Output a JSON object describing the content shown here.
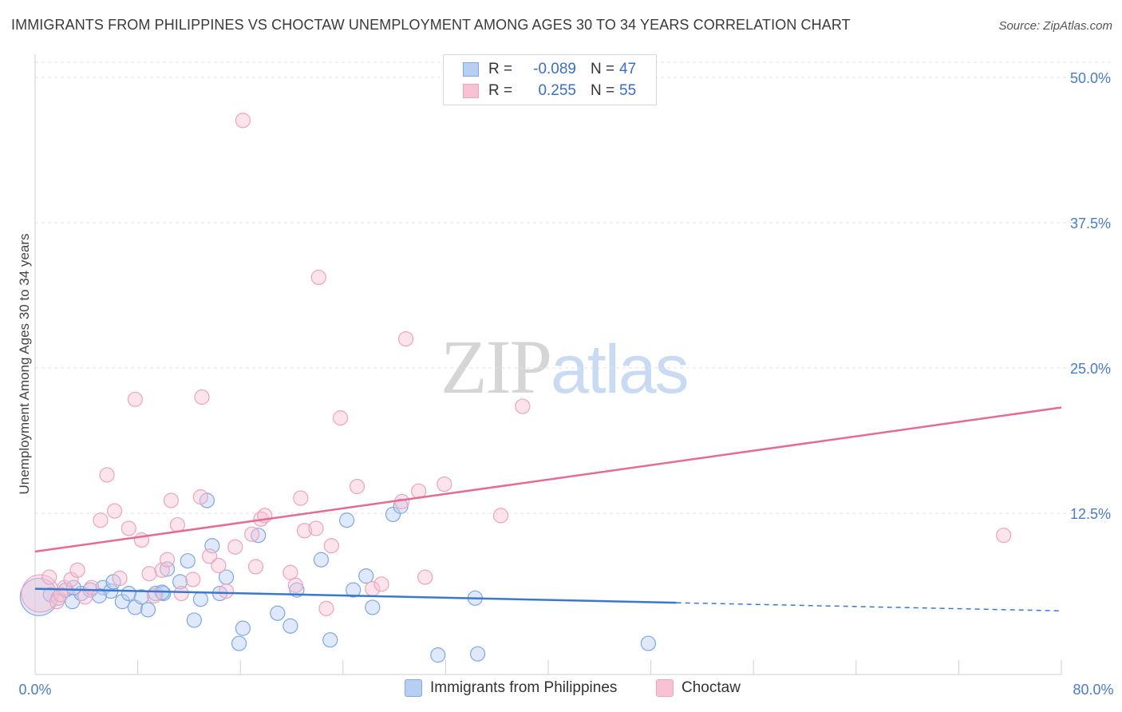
{
  "title": "IMMIGRANTS FROM PHILIPPINES VS CHOCTAW UNEMPLOYMENT AMONG AGES 30 TO 34 YEARS CORRELATION CHART",
  "source": "Source: ZipAtlas.com",
  "watermark": {
    "zip": "ZIP",
    "atlas": "atlas"
  },
  "legend": {
    "rows": [
      {
        "r_label": "R =",
        "r_value": "-0.089",
        "n_label": "N =",
        "n_value": "47"
      },
      {
        "r_label": "R =",
        "r_value": "0.255",
        "n_label": "N =",
        "n_value": "55"
      }
    ]
  },
  "bottom_legend": {
    "series_a": "Immigrants from Philippines",
    "series_b": "Choctaw"
  },
  "colors": {
    "blue_fill": "#b7cff3",
    "blue_stroke": "#7ea7e3",
    "blue_line": "#3a78d0",
    "pink_fill": "#f7c3d4",
    "pink_stroke": "#eda3bb",
    "pink_line": "#e46b95",
    "grid": "#e2e2e2",
    "tick": "#4a7cc7"
  },
  "chart_data": {
    "type": "scatter",
    "title": "IMMIGRANTS FROM PHILIPPINES VS CHOCTAW UNEMPLOYMENT AMONG AGES 30 TO 34 YEARS CORRELATION CHART",
    "xlabel": "",
    "ylabel": "Unemployment Among Ages 30 to 34 years",
    "xlim": [
      0,
      80
    ],
    "ylim": [
      0,
      50
    ],
    "x_tick_labels": [
      "0.0%",
      "80.0%"
    ],
    "y_ticks": [
      12.5,
      25.0,
      37.5,
      50.0
    ],
    "y_tick_labels": [
      "12.5%",
      "25.0%",
      "37.5%",
      "50.0%"
    ],
    "series": [
      {
        "name": "Immigrants from Philippines",
        "color": "blue",
        "trend": {
          "x0": 0,
          "y0": 6.0,
          "x1": 50,
          "y1": 4.8,
          "dashed_to": 80,
          "dashed_y": 4.1
        },
        "points": [
          [
            0.3,
            5.3,
            2.6
          ],
          [
            1.2,
            5.5,
            1
          ],
          [
            1.8,
            5.2,
            1
          ],
          [
            2.4,
            5.9,
            1
          ],
          [
            2.9,
            4.9,
            1
          ],
          [
            3.6,
            5.6,
            1
          ],
          [
            4.3,
            5.9,
            1
          ],
          [
            5.3,
            6.1,
            1
          ],
          [
            5.9,
            5.8,
            1
          ],
          [
            6.8,
            4.9,
            1
          ],
          [
            7.3,
            5.6,
            1
          ],
          [
            7.8,
            4.4,
            1
          ],
          [
            8.3,
            5.3,
            1
          ],
          [
            8.8,
            4.2,
            1
          ],
          [
            9.4,
            5.6,
            1
          ],
          [
            10.0,
            5.6,
            1
          ],
          [
            10.3,
            7.7,
            1
          ],
          [
            11.3,
            6.6,
            1
          ],
          [
            11.9,
            8.4,
            1
          ],
          [
            12.4,
            3.3,
            1
          ],
          [
            12.9,
            5.1,
            1
          ],
          [
            13.4,
            13.6,
            1
          ],
          [
            13.8,
            9.7,
            1
          ],
          [
            14.4,
            5.6,
            1
          ],
          [
            14.9,
            7.0,
            1
          ],
          [
            15.9,
            1.3,
            1
          ],
          [
            16.2,
            2.6,
            1
          ],
          [
            17.4,
            10.6,
            1
          ],
          [
            18.9,
            3.9,
            1
          ],
          [
            19.9,
            2.8,
            1
          ],
          [
            20.4,
            5.9,
            1
          ],
          [
            22.3,
            8.5,
            1
          ],
          [
            23.0,
            1.6,
            1
          ],
          [
            24.3,
            11.9,
            1
          ],
          [
            24.8,
            5.9,
            1
          ],
          [
            25.8,
            7.1,
            1
          ],
          [
            26.3,
            4.4,
            1
          ],
          [
            27.9,
            12.4,
            1
          ],
          [
            28.5,
            13.1,
            1
          ],
          [
            31.4,
            0.3,
            1
          ],
          [
            34.3,
            5.2,
            1
          ],
          [
            34.5,
            0.4,
            1
          ],
          [
            47.8,
            1.3,
            1
          ],
          [
            3.0,
            6.1,
            1
          ],
          [
            6.1,
            6.6,
            1
          ],
          [
            9.9,
            5.7,
            1
          ],
          [
            5.0,
            5.4,
            1
          ]
        ]
      },
      {
        "name": "Choctaw",
        "color": "pink",
        "trend": {
          "x0": 0,
          "y0": 9.2,
          "x1": 80,
          "y1": 21.6
        },
        "points": [
          [
            0.4,
            5.6,
            2.6
          ],
          [
            1.1,
            7.0,
            1
          ],
          [
            1.7,
            4.9,
            1
          ],
          [
            2.3,
            6.1,
            1
          ],
          [
            2.8,
            6.8,
            1
          ],
          [
            3.3,
            7.6,
            1
          ],
          [
            3.9,
            5.3,
            1
          ],
          [
            4.4,
            6.1,
            1
          ],
          [
            5.1,
            11.9,
            1
          ],
          [
            5.6,
            15.8,
            1
          ],
          [
            6.2,
            12.7,
            1
          ],
          [
            6.6,
            6.9,
            1
          ],
          [
            7.3,
            11.2,
            1
          ],
          [
            7.8,
            22.3,
            1
          ],
          [
            8.3,
            10.2,
            1
          ],
          [
            8.9,
            7.3,
            1
          ],
          [
            9.3,
            5.4,
            1
          ],
          [
            9.9,
            7.6,
            1
          ],
          [
            10.3,
            8.5,
            1
          ],
          [
            10.6,
            13.6,
            1
          ],
          [
            11.1,
            11.5,
            1
          ],
          [
            11.4,
            5.6,
            1
          ],
          [
            12.3,
            6.8,
            1
          ],
          [
            12.9,
            13.9,
            1
          ],
          [
            13.0,
            22.5,
            1
          ],
          [
            13.6,
            8.8,
            1
          ],
          [
            14.3,
            8.0,
            1
          ],
          [
            14.9,
            5.8,
            1
          ],
          [
            15.6,
            9.6,
            1
          ],
          [
            16.2,
            46.3,
            1
          ],
          [
            16.9,
            10.7,
            1
          ],
          [
            17.2,
            7.9,
            1
          ],
          [
            17.6,
            12.0,
            1
          ],
          [
            17.9,
            12.3,
            1
          ],
          [
            19.9,
            7.4,
            1
          ],
          [
            20.3,
            6.3,
            1
          ],
          [
            20.7,
            13.8,
            1
          ],
          [
            21.0,
            11.0,
            1
          ],
          [
            21.9,
            11.2,
            1
          ],
          [
            22.1,
            32.8,
            1
          ],
          [
            22.7,
            4.3,
            1
          ],
          [
            23.1,
            9.7,
            1
          ],
          [
            23.8,
            20.7,
            1
          ],
          [
            25.1,
            14.8,
            1
          ],
          [
            26.3,
            6.0,
            1
          ],
          [
            27.0,
            6.4,
            1
          ],
          [
            28.6,
            13.5,
            1
          ],
          [
            28.9,
            27.5,
            1
          ],
          [
            29.9,
            14.4,
            1
          ],
          [
            30.4,
            7.0,
            1
          ],
          [
            31.9,
            15.0,
            1
          ],
          [
            36.3,
            12.3,
            1
          ],
          [
            38.0,
            21.7,
            1
          ],
          [
            75.5,
            10.6,
            1
          ],
          [
            2.0,
            5.5,
            1
          ]
        ]
      }
    ]
  }
}
